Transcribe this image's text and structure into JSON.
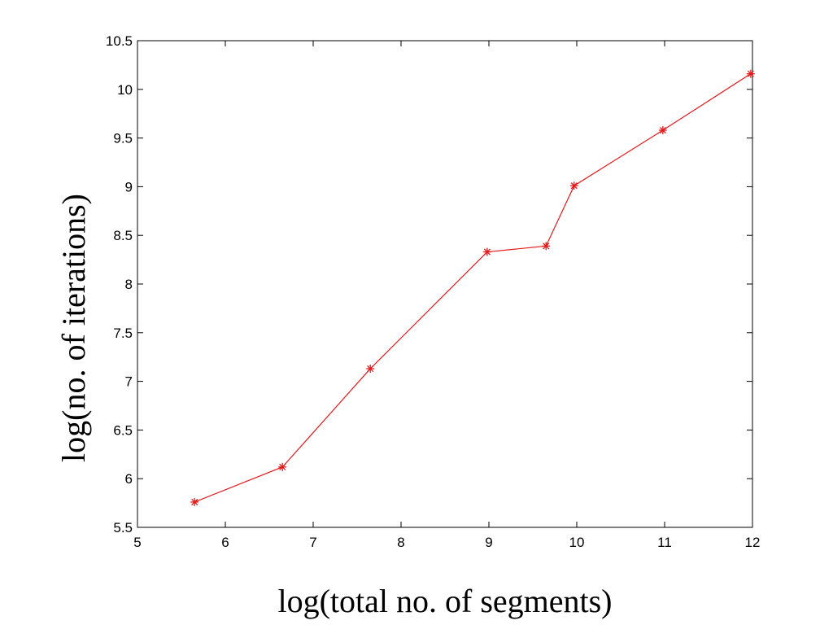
{
  "chart_data": {
    "type": "line",
    "title": "",
    "xlabel": "log(total no. of segments)",
    "ylabel": "log(no. of iterations)",
    "xlim": [
      5,
      12
    ],
    "ylim": [
      5.5,
      10.5
    ],
    "xticks": [
      5,
      6,
      7,
      8,
      9,
      10,
      11,
      12
    ],
    "yticks": [
      5.5,
      6,
      6.5,
      7,
      7.5,
      8,
      8.5,
      9,
      9.5,
      10,
      10.5
    ],
    "xtick_labels": [
      "5",
      "6",
      "7",
      "8",
      "9",
      "10",
      "11",
      "12"
    ],
    "ytick_labels": [
      "5.5",
      "6",
      "6.5",
      "7",
      "7.5",
      "8",
      "8.5",
      "9",
      "9.5",
      "10",
      "10.5"
    ],
    "grid": false,
    "legend": "none",
    "series": [
      {
        "color": "#e41a1c",
        "marker": "asterisk",
        "x": [
          5.65,
          6.65,
          7.65,
          8.98,
          9.65,
          9.97,
          10.98,
          11.98
        ],
        "y": [
          5.76,
          6.12,
          7.13,
          8.33,
          8.39,
          9.01,
          9.58,
          10.16
        ]
      }
    ]
  }
}
